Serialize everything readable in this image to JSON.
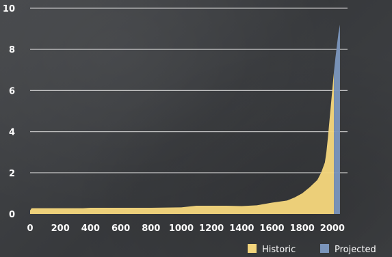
{
  "chart_data": {
    "type": "area",
    "title": "",
    "xlabel": "",
    "ylabel": "",
    "xlim": [
      0,
      2100
    ],
    "ylim": [
      0,
      10
    ],
    "x_ticks": [
      "0",
      "200",
      "400",
      "600",
      "800",
      "1000",
      "1200",
      "1400",
      "1600",
      "1800",
      "2000"
    ],
    "y_ticks": [
      "0",
      "2",
      "4",
      "6",
      "8",
      "10"
    ],
    "grid": "horizontal",
    "legend_position": "bottom-right",
    "series": [
      {
        "name": "Historic",
        "color": "#f3d57c",
        "points": [
          [
            0,
            0.17
          ],
          [
            10,
            0.28
          ],
          [
            100,
            0.28
          ],
          [
            200,
            0.28
          ],
          [
            350,
            0.28
          ],
          [
            400,
            0.3
          ],
          [
            600,
            0.3
          ],
          [
            800,
            0.3
          ],
          [
            1000,
            0.32
          ],
          [
            1100,
            0.4
          ],
          [
            1200,
            0.4
          ],
          [
            1300,
            0.4
          ],
          [
            1400,
            0.38
          ],
          [
            1500,
            0.42
          ],
          [
            1600,
            0.55
          ],
          [
            1700,
            0.65
          ],
          [
            1750,
            0.8
          ],
          [
            1800,
            1.0
          ],
          [
            1850,
            1.3
          ],
          [
            1900,
            1.65
          ],
          [
            1925,
            2.0
          ],
          [
            1950,
            2.5
          ],
          [
            1960,
            3.0
          ],
          [
            1970,
            3.7
          ],
          [
            1980,
            4.5
          ],
          [
            1990,
            5.3
          ],
          [
            2000,
            6.1
          ],
          [
            2010,
            6.9
          ]
        ]
      },
      {
        "name": "Projected",
        "color": "#7b95bb",
        "points": [
          [
            2010,
            6.9
          ],
          [
            2020,
            7.6
          ],
          [
            2030,
            8.2
          ],
          [
            2040,
            8.8
          ],
          [
            2050,
            9.2
          ]
        ]
      }
    ]
  }
}
